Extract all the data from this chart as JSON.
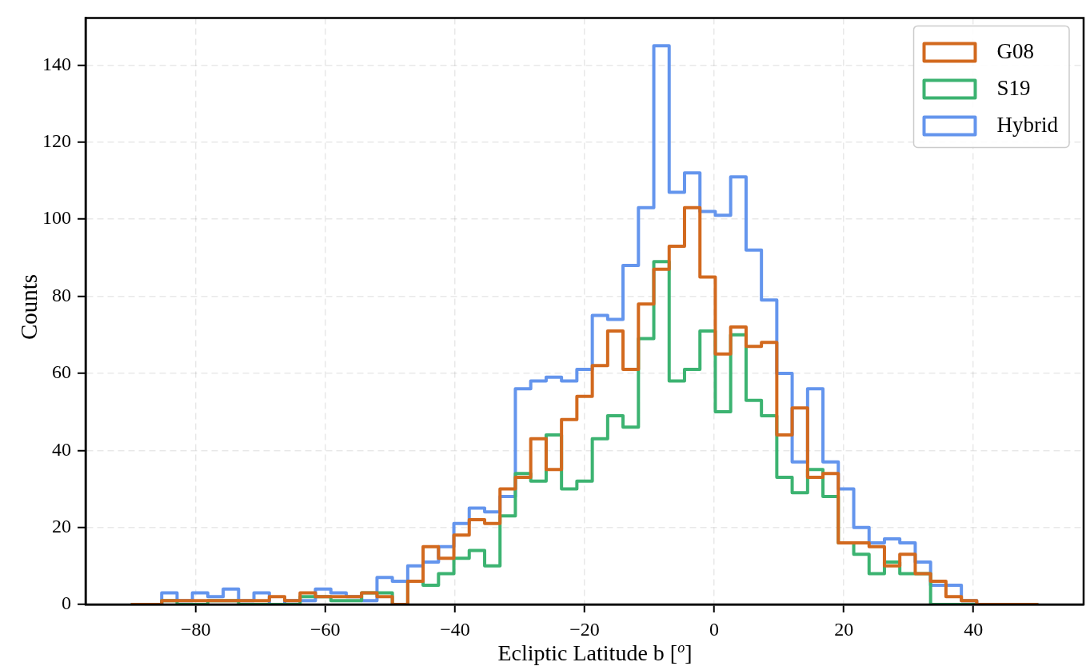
{
  "chart_data": {
    "type": "histogram",
    "xlabel": "Ecliptic Latitude b [$^{o}$]",
    "ylabel": "Counts",
    "bins": [
      -90,
      -87.63,
      -85.25,
      -82.88,
      -80.51,
      -78.14,
      -75.76,
      -73.39,
      -71.02,
      -68.64,
      -66.27,
      -63.9,
      -61.53,
      -59.15,
      -56.78,
      -54.41,
      -52.03,
      -49.66,
      -47.29,
      -44.92,
      -42.54,
      -40.17,
      -37.8,
      -35.42,
      -33.05,
      -30.68,
      -28.31,
      -25.93,
      -23.56,
      -21.19,
      -18.81,
      -16.44,
      -14.07,
      -11.69,
      -9.32,
      -6.95,
      -4.58,
      -2.2,
      0.17,
      2.54,
      4.92,
      7.29,
      9.66,
      12.03,
      14.41,
      16.78,
      19.15,
      21.53,
      23.9,
      26.27,
      28.64,
      31.02,
      33.39,
      35.76,
      38.14,
      40.51,
      42.88,
      45.25,
      47.63,
      50
    ],
    "series": [
      {
        "name": "G08",
        "color": "#d2691e",
        "values": [
          0,
          0,
          1,
          1,
          1,
          1,
          1,
          1,
          1,
          2,
          1,
          3,
          2,
          2,
          2,
          3,
          2,
          0,
          6,
          15,
          12,
          18,
          22,
          21,
          30,
          33,
          43,
          35,
          48,
          54,
          62,
          71,
          61,
          78,
          87,
          93,
          103,
          85,
          65,
          72,
          67,
          68,
          44,
          51,
          33,
          34,
          16,
          16,
          15,
          10,
          13,
          8,
          6,
          2,
          1,
          0,
          0,
          0,
          0
        ]
      },
      {
        "name": "S19",
        "color": "#3cb371",
        "values": [
          0,
          0,
          1,
          0,
          0,
          1,
          1,
          0,
          0,
          0,
          0,
          2,
          2,
          1,
          1,
          3,
          3,
          0,
          6,
          5,
          8,
          12,
          14,
          10,
          23,
          34,
          32,
          44,
          30,
          32,
          43,
          49,
          46,
          69,
          89,
          58,
          61,
          71,
          50,
          70,
          53,
          49,
          33,
          29,
          35,
          28,
          16,
          13,
          8,
          11,
          8,
          8,
          0,
          0,
          0,
          0,
          0,
          0,
          0
        ]
      },
      {
        "name": "Hybrid",
        "color": "#6495ed",
        "values": [
          0,
          0,
          3,
          1,
          3,
          2,
          4,
          1,
          3,
          0,
          1,
          1,
          4,
          3,
          2,
          1,
          7,
          6,
          10,
          11,
          15,
          21,
          25,
          24,
          28,
          56,
          58,
          59,
          58,
          61,
          75,
          74,
          88,
          103,
          145,
          107,
          112,
          102,
          101,
          111,
          92,
          79,
          60,
          37,
          56,
          37,
          30,
          20,
          16,
          17,
          16,
          11,
          5,
          5,
          1,
          0,
          0,
          0,
          0
        ]
      }
    ],
    "xlim": [
      -97,
      57
    ],
    "ylim": [
      0,
      152.25
    ],
    "xticks": [
      {
        "value": -80,
        "label": "−80"
      },
      {
        "value": -60,
        "label": "−60"
      },
      {
        "value": -40,
        "label": "−40"
      },
      {
        "value": -20,
        "label": "−20"
      },
      0,
      20,
      40
    ],
    "yticks": [
      0,
      20,
      40,
      60,
      80,
      100,
      120,
      140
    ],
    "grid": true,
    "legend": "top right",
    "line_style": "solid"
  }
}
